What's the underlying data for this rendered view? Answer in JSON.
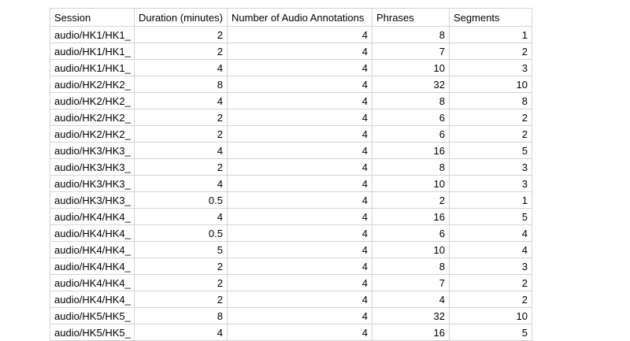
{
  "page": {
    "background_color": "#ffffff",
    "text_color": "#000000",
    "table_border_color": "#d4d4d4"
  },
  "table": {
    "columns": [
      "Session",
      "Duration (minutes)",
      "Number of Audio Annotations",
      "Phrases",
      "Segments"
    ],
    "column_alignments": [
      "left",
      "right",
      "right",
      "right",
      "right"
    ],
    "rows": [
      [
        "audio/HK1/HK1_",
        "2",
        "4",
        "8",
        "1"
      ],
      [
        "audio/HK1/HK1_",
        "2",
        "4",
        "7",
        "2"
      ],
      [
        "audio/HK1/HK1_",
        "4",
        "4",
        "10",
        "3"
      ],
      [
        "audio/HK2/HK2_",
        "8",
        "4",
        "32",
        "10"
      ],
      [
        "audio/HK2/HK2_",
        "4",
        "4",
        "8",
        "8"
      ],
      [
        "audio/HK2/HK2_",
        "2",
        "4",
        "6",
        "2"
      ],
      [
        "audio/HK2/HK2_",
        "2",
        "4",
        "6",
        "2"
      ],
      [
        "audio/HK3/HK3_",
        "4",
        "4",
        "16",
        "5"
      ],
      [
        "audio/HK3/HK3_",
        "2",
        "4",
        "8",
        "3"
      ],
      [
        "audio/HK3/HK3_",
        "4",
        "4",
        "10",
        "3"
      ],
      [
        "audio/HK3/HK3_",
        "0.5",
        "4",
        "2",
        "1"
      ],
      [
        "audio/HK4/HK4_",
        "4",
        "4",
        "16",
        "5"
      ],
      [
        "audio/HK4/HK4_",
        "0.5",
        "4",
        "6",
        "4"
      ],
      [
        "audio/HK4/HK4_",
        "5",
        "4",
        "10",
        "4"
      ],
      [
        "audio/HK4/HK4_",
        "2",
        "4",
        "8",
        "3"
      ],
      [
        "audio/HK4/HK4_",
        "2",
        "4",
        "7",
        "2"
      ],
      [
        "audio/HK4/HK4_",
        "2",
        "4",
        "4",
        "2"
      ],
      [
        "audio/HK5/HK5_",
        "8",
        "4",
        "32",
        "10"
      ],
      [
        "audio/HK5/HK5_",
        "4",
        "4",
        "16",
        "5"
      ]
    ]
  }
}
